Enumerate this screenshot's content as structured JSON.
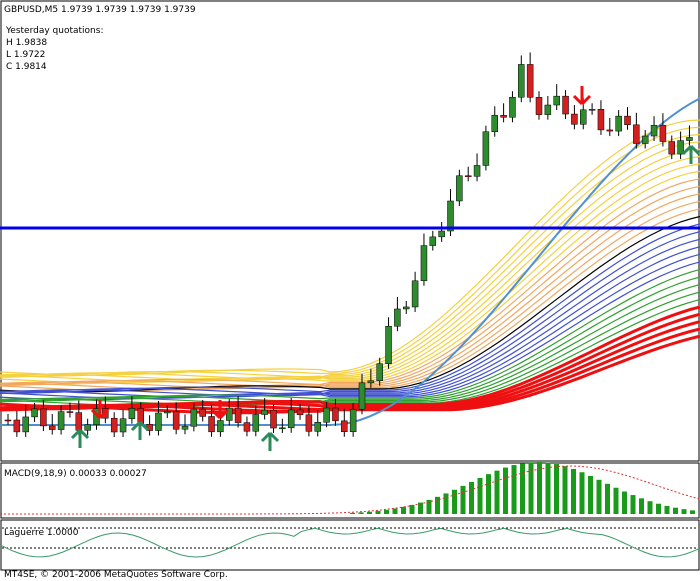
{
  "header": {
    "symbol_line": "GBPUSD,M5  1.9739 1.9739 1.9739 1.9739"
  },
  "quotations": {
    "title": "Yesterday quotations:",
    "high": "H 1.9838",
    "low": "L 1.9722",
    "close": "C 1.9814"
  },
  "macd": {
    "label": "MACD(9,18,9) 0.00033 0.00027"
  },
  "laguerre": {
    "label": "Laguerre 1.0000"
  },
  "footer": {
    "copyright": "MT4SE, © 2001-2006 MetaQuotes Software Corp."
  }
}
